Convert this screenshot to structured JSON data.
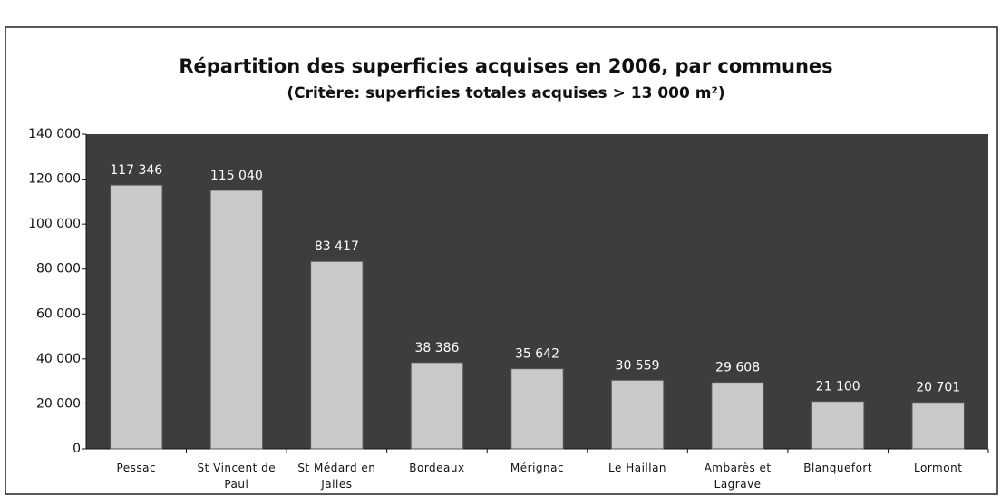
{
  "chart_data": {
    "type": "bar",
    "title": "Répartition des superficies acquises en 2006, par communes",
    "subtitle": "(Critère: superficies totales acquises > 13 000 m²)",
    "categories": [
      "Pessac",
      "St Vincent de Paul",
      "St Médard en Jalles",
      "Bordeaux",
      "Mérignac",
      "Le Haillan",
      "Ambarès et Lagrave",
      "Blanquefort",
      "Lormont"
    ],
    "values": [
      117346,
      115040,
      83417,
      38386,
      35642,
      30559,
      29608,
      21100,
      20701
    ],
    "value_labels": [
      "117 346",
      "115 040",
      "83 417",
      "38 386",
      "35 642",
      "30 559",
      "29 608",
      "21 100",
      "20 701"
    ],
    "color": "#c9c9c9",
    "ylim": [
      0,
      140000
    ],
    "yticks": [
      0,
      {
        "value": 20000,
        "label": "20 000"
      },
      {
        "value": 40000,
        "label": "40 000"
      },
      {
        "value": 60000,
        "label": "60 000"
      },
      {
        "value": 80000,
        "label": "80 000"
      },
      {
        "value": 100000,
        "label": "100 000"
      },
      {
        "value": 120000,
        "label": "120 000"
      },
      {
        "value": 140000,
        "label": "140 000"
      }
    ]
  }
}
